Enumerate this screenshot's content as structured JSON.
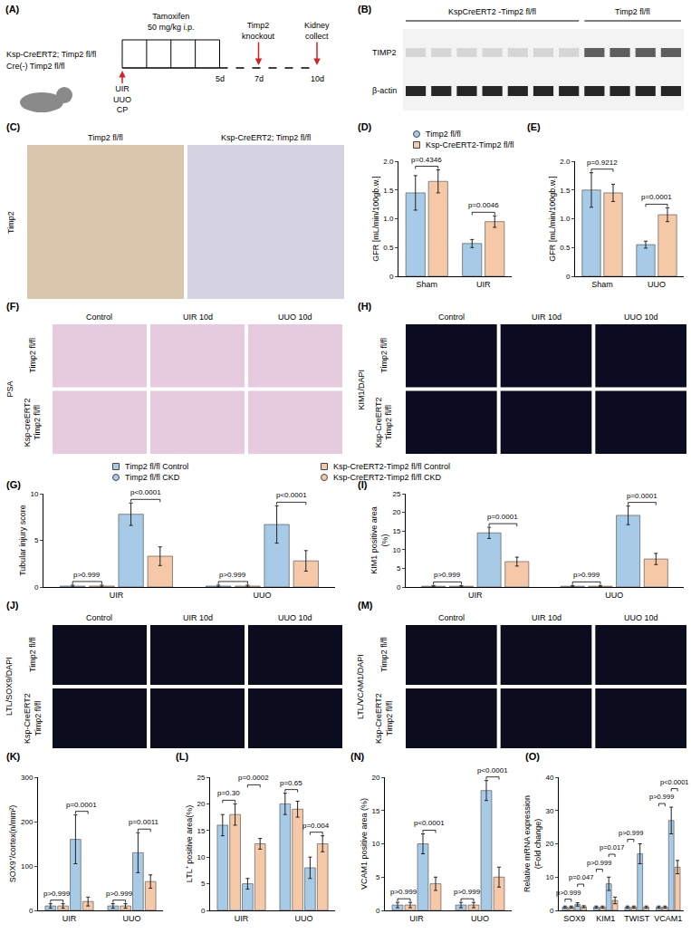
{
  "schematic": {
    "panel": "(A)",
    "genotypes": [
      "Ksp-CreERT2; Timp2 fl/fl",
      "Cre(-) Timp2 fl/fl"
    ],
    "treatment": [
      "Tamoxifen",
      "50 mg/kg i.p."
    ],
    "injuries": [
      "UIR",
      "UUO",
      "CP"
    ],
    "events": [
      "Timp2 knockout",
      "Kidney collect"
    ],
    "days": [
      "5d",
      "7d",
      "10d"
    ]
  },
  "blot": {
    "panel": "(B)",
    "groups": [
      "KspCreERT2 -Timp2 fl/fl",
      "Timp2 fl/fl"
    ],
    "rows": [
      "TIMP2",
      "β-actin"
    ]
  },
  "image_panels": [
    {
      "panel": "(C)",
      "stain": "Timp2",
      "columns": [
        "Timp2 fl/fl",
        "Ksp-CreERT2; Timp2 fl/fl"
      ]
    },
    {
      "panel": "(F)",
      "stain": "PSA",
      "columns": [
        "Control",
        "UIR 10d",
        "UUO 10d"
      ],
      "rows": [
        "Timp2 fl/fl",
        "Ksp-creERT2 Timp2 fl/fl"
      ]
    },
    {
      "panel": "(H)",
      "stain": "KIM1/DAPI",
      "columns": [
        "Control",
        "UIR 10d",
        "UUO 10d"
      ],
      "rows": [
        "Timp2 fl/fl",
        "Ksp-CreERT2 Timp2 fl/fl"
      ]
    },
    {
      "panel": "(J)",
      "stain": "LTL/SOX9/DAPI",
      "columns": [
        "Control",
        "UIR 10d",
        "UUO 10d"
      ],
      "rows": [
        "Timp2 fl/fl",
        "Ksp-CreERT2 Timp2 fl/fl"
      ]
    },
    {
      "panel": "(M)",
      "stain": "LTL/VCAM1/DAPI",
      "columns": [
        "Control",
        "UIR 10d",
        "UUO 10d"
      ],
      "rows": [
        "Timp2 fl/fl",
        "Ksp-CreERT2 Timp2 fl/fl"
      ]
    }
  ],
  "chart_data": [
    {
      "panel": "(D)",
      "type": "bar",
      "ylabel": "GFR [mL/min/100gb.w.]",
      "categories": [
        "Sham",
        "UIR"
      ],
      "series": [
        {
          "name": "Timp2 fl/fl",
          "color": "#a7cbe6",
          "marker": "circle",
          "values": [
            1.45,
            0.57
          ],
          "errors": [
            0.3,
            0.07
          ]
        },
        {
          "name": "Ksp-CreERT2-Timp2 fl/fl",
          "color": "#f5c9a8",
          "marker": "square",
          "values": [
            1.65,
            0.95
          ],
          "errors": [
            0.2,
            0.1
          ]
        }
      ],
      "ylim": [
        0,
        2
      ],
      "yticks": [
        0,
        0.5,
        {
          "value": 1,
          "label": "1.0"
        },
        1.5,
        {
          "value": 2,
          "label": "2.0"
        }
      ],
      "legend": "top",
      "comparisons": [
        {
          "category": "Sham",
          "bars": [
            0,
            1
          ],
          "label": "p=0.4346"
        },
        {
          "category": "UIR",
          "bars": [
            0,
            1
          ],
          "label": "p=0.0046"
        }
      ]
    },
    {
      "panel": "(E)",
      "type": "bar",
      "ylabel": "GFR [mL/min/100gb.w.]",
      "categories": [
        "Sham",
        "UUO"
      ],
      "series": [
        {
          "color": "#a7cbe6",
          "values": [
            1.5,
            0.55
          ],
          "errors": [
            0.3,
            0.06
          ]
        },
        {
          "color": "#f5c9a8",
          "values": [
            1.45,
            1.07
          ],
          "errors": [
            0.15,
            0.12
          ]
        }
      ],
      "ylim": [
        0,
        2
      ],
      "yticks": [
        0,
        0.5,
        {
          "value": 1,
          "label": "1.0"
        },
        1.5,
        {
          "value": 2,
          "label": "2.0"
        }
      ],
      "comparisons": [
        {
          "category": "Sham",
          "bars": [
            0,
            1
          ],
          "label": "p=0.9212"
        },
        {
          "category": "UUO",
          "bars": [
            0,
            1
          ],
          "label": "p=0.0001"
        }
      ]
    },
    {
      "panel": "(G)",
      "type": "bar",
      "ylabel": "Tubular injury score",
      "categories": [
        "UIR",
        "UUO"
      ],
      "series": [
        {
          "name": "Timp2 fl/fl Control",
          "color": "#a7cbe6",
          "marker": "square",
          "values": [
            0.1,
            0.1
          ],
          "errors": [
            0.1,
            0.1
          ]
        },
        {
          "name": "Ksp-CreERT2-Timp2 fl/fl Control",
          "color": "#f5c9a8",
          "marker": "square",
          "values": [
            0.1,
            0.1
          ],
          "errors": [
            0.1,
            0.1
          ]
        },
        {
          "name": "Timp2 fl/fl CKD",
          "color": "#a7cbe6",
          "marker": "circle",
          "values": [
            7.8,
            6.7
          ],
          "errors": [
            1.2,
            2.0
          ]
        },
        {
          "name": "Ksp-CreERT2-Timp2 fl/fl CKD",
          "color": "#f5c9a8",
          "marker": "circle",
          "values": [
            3.3,
            2.8
          ],
          "errors": [
            1.0,
            1.1
          ]
        }
      ],
      "ylim": [
        0,
        10
      ],
      "yticks": [
        0,
        5,
        10
      ],
      "legend": "top",
      "comparisons": [
        {
          "category": "UIR",
          "bars": [
            0,
            1
          ],
          "label": "p>0.999"
        },
        {
          "category": "UIR",
          "bars": [
            2,
            3
          ],
          "label": "p<0.0001"
        },
        {
          "category": "UUO",
          "bars": [
            0,
            1
          ],
          "label": "p>0.999"
        },
        {
          "category": "UUO",
          "bars": [
            2,
            3
          ],
          "label": "p<0.0001"
        }
      ]
    },
    {
      "panel": "(I)",
      "type": "bar",
      "ylabel": "KIM1 positive area (%)",
      "categories": [
        "UIR",
        "UUO"
      ],
      "series": [
        {
          "color": "#a7cbe6",
          "values": [
            0.2,
            0.2
          ],
          "errors": [
            0.2,
            0.2
          ]
        },
        {
          "color": "#f5c9a8",
          "values": [
            0.2,
            0.2
          ],
          "errors": [
            0.2,
            0.2
          ]
        },
        {
          "color": "#a7cbe6",
          "values": [
            14.5,
            19.2
          ],
          "errors": [
            1.5,
            2.5
          ]
        },
        {
          "color": "#f5c9a8",
          "values": [
            6.8,
            7.5
          ],
          "errors": [
            1.2,
            1.5
          ]
        }
      ],
      "ylim": [
        0,
        25
      ],
      "yticks": [
        0,
        5,
        10,
        15,
        20,
        25
      ],
      "comparisons": [
        {
          "category": "UIR",
          "bars": [
            0,
            1
          ],
          "label": "p>0.999"
        },
        {
          "category": "UIR",
          "bars": [
            2,
            3
          ],
          "label": "p=0.0001"
        },
        {
          "category": "UUO",
          "bars": [
            0,
            1
          ],
          "label": "p>0.999"
        },
        {
          "category": "UUO",
          "bars": [
            2,
            3
          ],
          "label": "p=0.0001"
        }
      ]
    },
    {
      "panel": "(K)",
      "type": "bar",
      "ylabel": "SOX9⁺/cortex(n/mm²)",
      "categories": [
        "UIR",
        "UUO"
      ],
      "series": [
        {
          "color": "#a7cbe6",
          "values": [
            10,
            10
          ],
          "errors": [
            5,
            5
          ]
        },
        {
          "color": "#f5c9a8",
          "values": [
            10,
            10
          ],
          "errors": [
            5,
            5
          ]
        },
        {
          "color": "#a7cbe6",
          "values": [
            160,
            130
          ],
          "errors": [
            55,
            45
          ]
        },
        {
          "color": "#f5c9a8",
          "values": [
            20,
            65
          ],
          "errors": [
            10,
            15
          ]
        }
      ],
      "ylim": [
        0,
        300
      ],
      "yticks": [
        0,
        100,
        200,
        300
      ],
      "comparisons": [
        {
          "category": "UIR",
          "bars": [
            0,
            1
          ],
          "label": "p>0.999"
        },
        {
          "category": "UIR",
          "bars": [
            2,
            3
          ],
          "label": "p=0.0001"
        },
        {
          "category": "UUO",
          "bars": [
            0,
            1
          ],
          "label": "p>0.999"
        },
        {
          "category": "UUO",
          "bars": [
            2,
            3
          ],
          "label": "p=0.0011"
        }
      ]
    },
    {
      "panel": "(L)",
      "type": "bar",
      "ylabel": "LTL⁺ positive area(%)",
      "categories": [
        "UIR",
        "UUO"
      ],
      "series": [
        {
          "color": "#a7cbe6",
          "values": [
            16,
            20
          ],
          "errors": [
            2,
            2
          ]
        },
        {
          "color": "#f5c9a8",
          "values": [
            18,
            19
          ],
          "errors": [
            2,
            1.5
          ]
        },
        {
          "color": "#a7cbe6",
          "values": [
            5,
            8
          ],
          "errors": [
            1,
            2
          ]
        },
        {
          "color": "#f5c9a8",
          "values": [
            12.5,
            12.5
          ],
          "errors": [
            1,
            1.5
          ]
        }
      ],
      "ylim": [
        0,
        25
      ],
      "yticks": [
        0,
        5,
        10,
        15,
        20,
        25
      ],
      "comparisons": [
        {
          "category": "UIR",
          "bars": [
            0,
            1
          ],
          "label": "p=0.30"
        },
        {
          "category": "UIR",
          "bars": [
            2,
            3
          ],
          "label": "p=0.0002"
        },
        {
          "category": "UUO",
          "bars": [
            0,
            1
          ],
          "label": "p=0.65"
        },
        {
          "category": "UUO",
          "bars": [
            2,
            3
          ],
          "label": "p=0.004"
        }
      ]
    },
    {
      "panel": "(N)",
      "type": "bar",
      "ylabel": "VCAM1 positive area (%)",
      "categories": [
        "UIR",
        "UUO"
      ],
      "series": [
        {
          "color": "#a7cbe6",
          "values": [
            0.8,
            0.8
          ],
          "errors": [
            0.4,
            0.4
          ]
        },
        {
          "color": "#f5c9a8",
          "values": [
            0.8,
            0.8
          ],
          "errors": [
            0.4,
            0.4
          ]
        },
        {
          "color": "#a7cbe6",
          "values": [
            10,
            18
          ],
          "errors": [
            1.5,
            1.5
          ]
        },
        {
          "color": "#f5c9a8",
          "values": [
            4,
            5
          ],
          "errors": [
            1,
            1.5
          ]
        }
      ],
      "ylim": [
        0,
        20
      ],
      "yticks": [
        0,
        5,
        10,
        15,
        20
      ],
      "comparisons": [
        {
          "category": "UIR",
          "bars": [
            0,
            1
          ],
          "label": "p>0.999"
        },
        {
          "category": "UIR",
          "bars": [
            2,
            3
          ],
          "label": "p<0.0001"
        },
        {
          "category": "UUO",
          "bars": [
            0,
            1
          ],
          "label": "p>0.999"
        },
        {
          "category": "UUO",
          "bars": [
            2,
            3
          ],
          "label": "p<0.0001"
        }
      ]
    },
    {
      "panel": "(O)",
      "type": "bar",
      "ylabel": "Relative mRNA expression (Fold change)",
      "categories": [
        "SOX9",
        "KIM1",
        "TWIST",
        "VCAM1"
      ],
      "series": [
        {
          "color": "#a7cbe6",
          "values": [
            1,
            1,
            1,
            1
          ],
          "errors": [
            0.3,
            0.3,
            0.3,
            0.3
          ]
        },
        {
          "color": "#f5c9a8",
          "values": [
            1,
            1,
            1,
            1
          ],
          "errors": [
            0.3,
            0.3,
            0.3,
            0.3
          ]
        },
        {
          "color": "#a7cbe6",
          "values": [
            1.8,
            8,
            17,
            27
          ],
          "errors": [
            0.5,
            2,
            3,
            4
          ]
        },
        {
          "color": "#f5c9a8",
          "values": [
            1.1,
            3,
            1,
            13
          ],
          "errors": [
            0.3,
            1,
            0.3,
            2
          ]
        }
      ],
      "ylim": [
        0,
        40
      ],
      "yticks": [
        0,
        10,
        20,
        30,
        40
      ],
      "comparisons": [
        {
          "category": "SOX9",
          "bars": [
            0,
            1
          ],
          "label": "p>0.999"
        },
        {
          "category": "SOX9",
          "bars": [
            2,
            3
          ],
          "label": "p=0.047"
        },
        {
          "category": "KIM1",
          "bars": [
            0,
            1
          ],
          "label": "p>0.999"
        },
        {
          "category": "KIM1",
          "bars": [
            2,
            3
          ],
          "label": "p=0.017"
        },
        {
          "category": "TWIST",
          "bars": [
            0,
            1
          ],
          "label": "p>0.999"
        },
        {
          "category": "VCAM1",
          "bars": [
            0,
            1
          ],
          "label": "p>0.999"
        },
        {
          "category": "VCAM1",
          "bars": [
            2,
            3
          ],
          "label": "p<0.0001"
        }
      ]
    }
  ]
}
